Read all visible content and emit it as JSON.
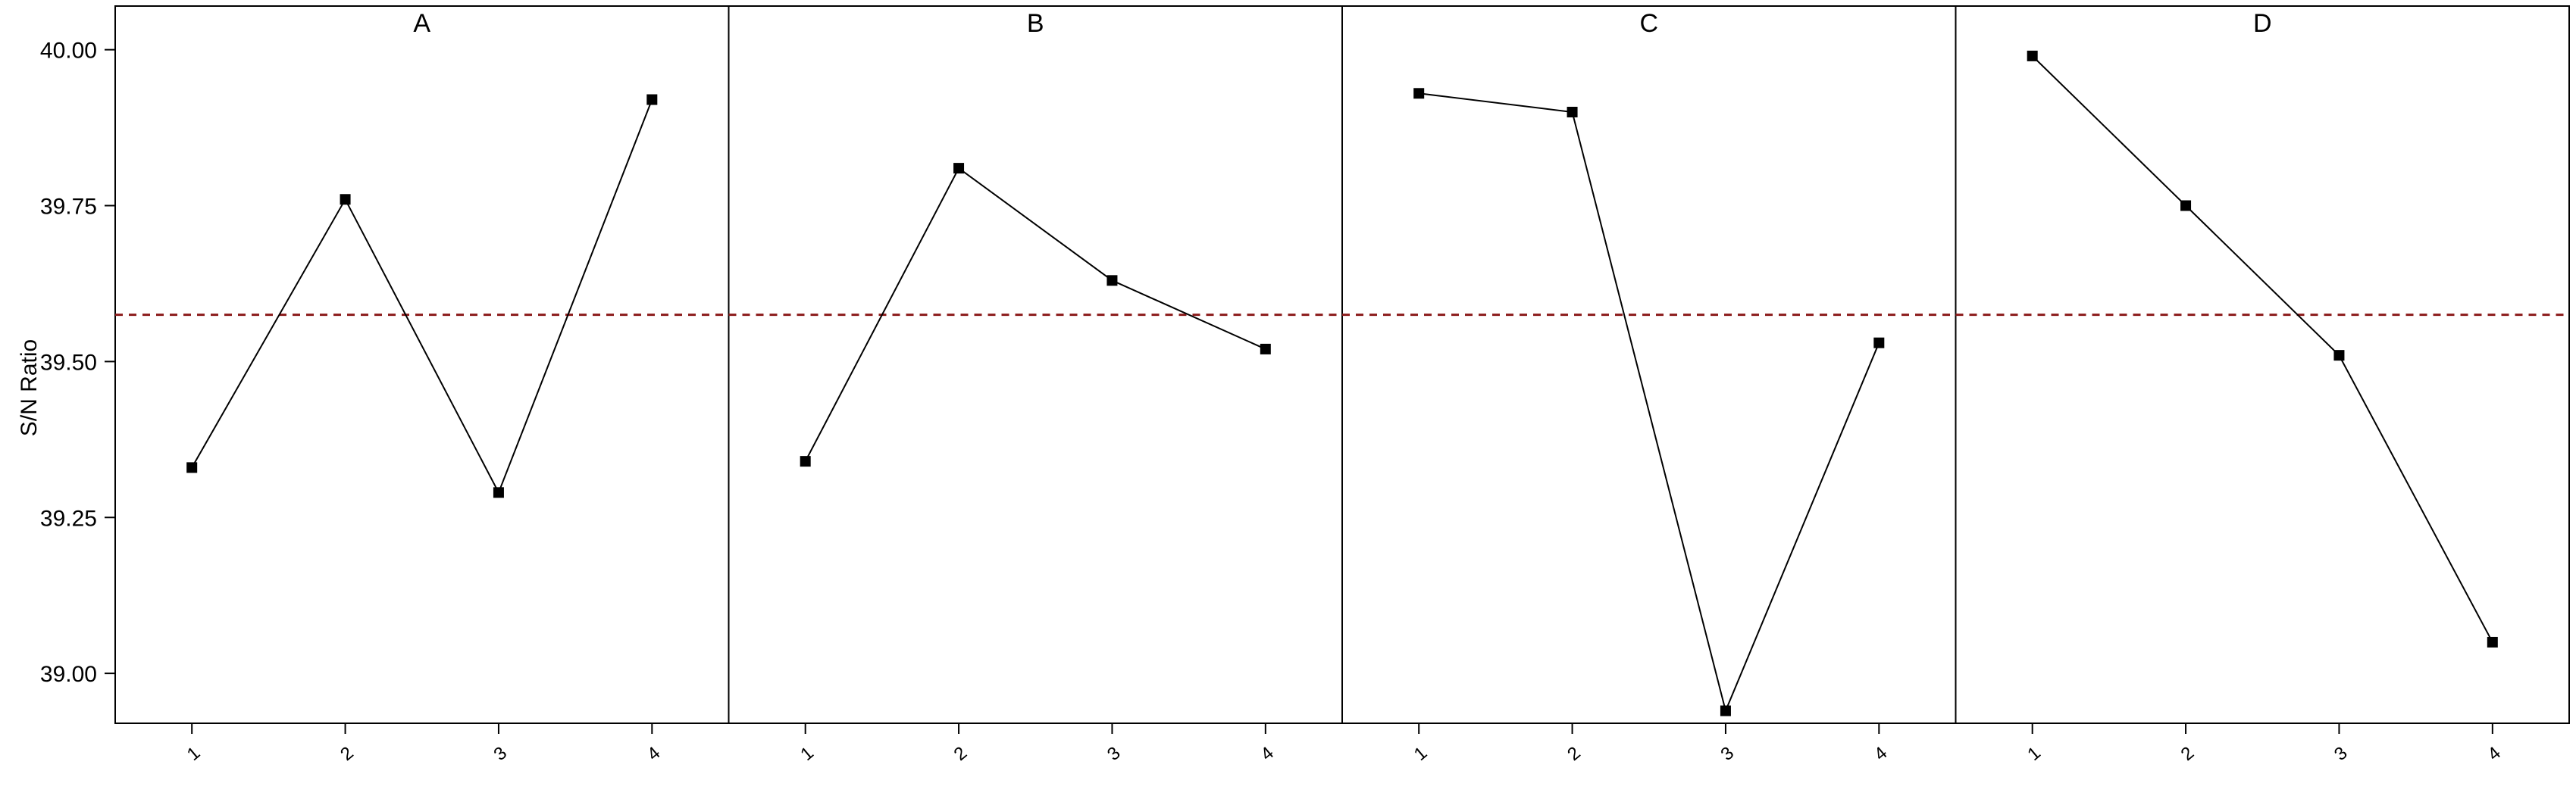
{
  "chart_data": {
    "type": "line",
    "title": "",
    "ylabel": "S/N Ratio",
    "xlabel": "",
    "ylim": [
      38.92,
      40.07
    ],
    "yticks": [
      "40.00",
      "39.75",
      "39.50",
      "39.25",
      "39.00"
    ],
    "reference_line": {
      "value": 39.575,
      "style": "dashed",
      "color": "#8b1a1a"
    },
    "grid": false,
    "panels": [
      {
        "name": "A",
        "categories": [
          "1",
          "2",
          "3",
          "4"
        ],
        "values": [
          39.33,
          39.76,
          39.29,
          39.92
        ]
      },
      {
        "name": "B",
        "categories": [
          "1",
          "2",
          "3",
          "4"
        ],
        "values": [
          39.34,
          39.81,
          39.63,
          39.52
        ]
      },
      {
        "name": "C",
        "categories": [
          "1",
          "2",
          "3",
          "4"
        ],
        "values": [
          39.93,
          39.9,
          38.94,
          39.53
        ]
      },
      {
        "name": "D",
        "categories": [
          "1",
          "2",
          "3",
          "4"
        ],
        "values": [
          39.99,
          39.75,
          39.51,
          39.05
        ]
      }
    ]
  }
}
